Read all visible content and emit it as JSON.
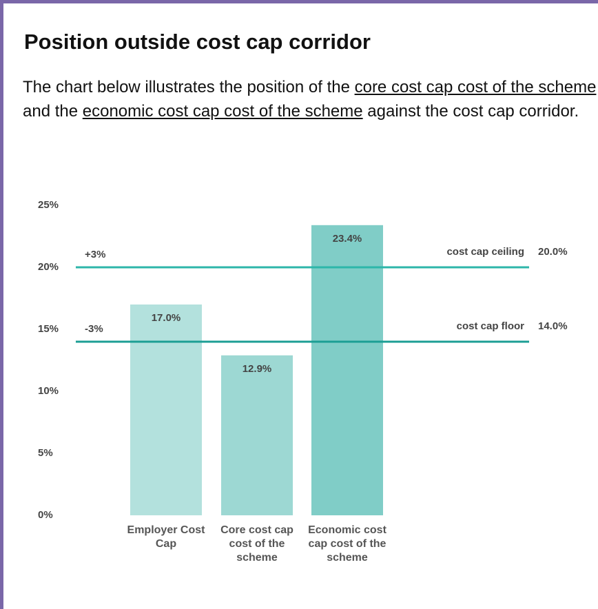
{
  "heading": "Position outside cost cap corridor",
  "intro": [
    {
      "text": "The chart below illustrates the position of the "
    },
    {
      "text": "core cost cap cost of the scheme",
      "underline": true
    },
    {
      "text": " and the "
    },
    {
      "text": "economic cost cap cost of the scheme",
      "underline": true
    },
    {
      "text": " against the cost cap corridor."
    }
  ],
  "chart_data": {
    "type": "bar",
    "categories": [
      "Employer Cost Cap",
      "Core cost cap cost of the scheme",
      "Economic cost cap cost of the scheme"
    ],
    "values": [
      17.0,
      12.9,
      23.4
    ],
    "value_labels": [
      "17.0%",
      "12.9%",
      "23.4%"
    ],
    "colors": [
      "#b3e1dd",
      "#9dd8d3",
      "#80cdc7"
    ],
    "ylim": [
      0,
      25
    ],
    "yticks": [
      {
        "value": 0,
        "label": "0%"
      },
      {
        "value": 5,
        "label": "5%"
      },
      {
        "value": 10,
        "label": "10%"
      },
      {
        "value": 15,
        "label": "15%"
      },
      {
        "value": 20,
        "label": "20%"
      },
      {
        "value": 25,
        "label": "25%"
      }
    ],
    "grid": false,
    "reference_lines": [
      {
        "label": "cost cap ceiling",
        "value": 20.0,
        "value_label": "20.0%",
        "offset_label": "+3%",
        "color": "#2db6aa"
      },
      {
        "label": "cost cap floor",
        "value": 14.0,
        "value_label": "14.0%",
        "offset_label": "-3%",
        "color": "#1c9e94"
      }
    ]
  }
}
